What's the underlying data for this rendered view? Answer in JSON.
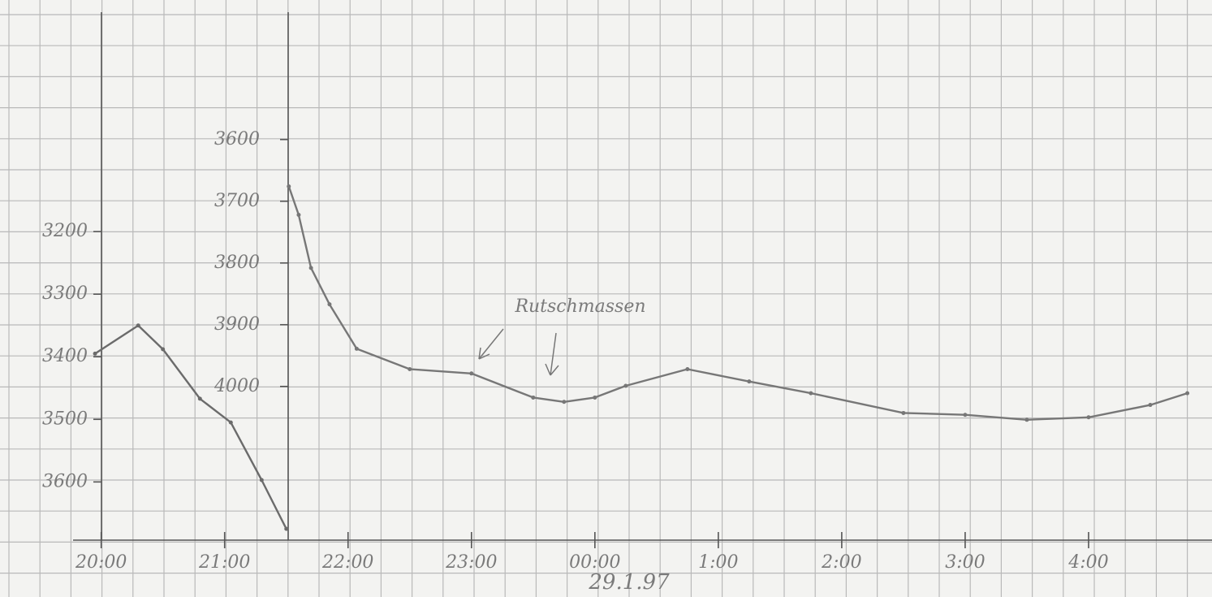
{
  "chart_data": {
    "type": "line",
    "annotation": "Rutschmassen",
    "date_label": "29.1.97",
    "xlim": [
      19.18,
      29.0
    ],
    "xticks": [
      {
        "value": 20,
        "label": "20:00"
      },
      {
        "value": 21,
        "label": "21:00"
      },
      {
        "value": 22,
        "label": "22:00"
      },
      {
        "value": 23,
        "label": "23:00"
      },
      {
        "value": 24,
        "label": "00:00"
      },
      {
        "value": 25,
        "label": "1:00"
      },
      {
        "value": 26,
        "label": "2:00"
      },
      {
        "value": 27,
        "label": "3:00"
      },
      {
        "value": 28,
        "label": "4:00"
      }
    ],
    "ylim": [
      3693,
      2830
    ],
    "yticks": [
      3200,
      3300,
      3400,
      3500,
      3600
    ],
    "y2lim": [
      4249,
      3374
    ],
    "y2ticks": [
      3600,
      3700,
      3800,
      3900,
      4000
    ],
    "grid": true,
    "series": [
      {
        "color": "#6b6b6b",
        "x": [
          19.95,
          20.3,
          20.5,
          20.8,
          21.05,
          21.3,
          21.5
        ],
        "values": [
          3395,
          3350,
          3388,
          3467,
          3505,
          3597,
          3675
        ]
      },
      {
        "color": "#777777",
        "axis": "y2",
        "x": [
          21.52,
          21.6,
          21.7,
          21.85,
          22.07,
          22.5,
          23.0,
          23.5,
          23.75,
          24.0,
          24.25,
          24.75,
          25.25,
          25.75,
          26.5,
          27.0,
          27.5,
          28.0,
          28.5,
          28.8
        ],
        "values": [
          3676,
          3722,
          3808,
          3867,
          3939,
          3972,
          3979,
          4018,
          4025,
          4018,
          3999,
          3972,
          3992,
          4011,
          4043,
          4046,
          4054,
          4050,
          4030,
          4011
        ]
      }
    ]
  }
}
